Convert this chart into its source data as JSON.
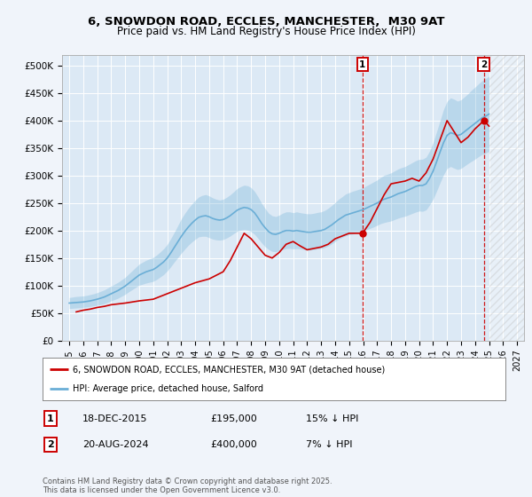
{
  "title_line1": "6, SNOWDON ROAD, ECCLES, MANCHESTER,  M30 9AT",
  "title_line2": "Price paid vs. HM Land Registry's House Price Index (HPI)",
  "background_color": "#dce9f5",
  "plot_bg_color": "#dce9f5",
  "outer_bg_color": "#f0f4fa",
  "grid_color": "#ffffff",
  "ylim": [
    0,
    520000
  ],
  "yticks": [
    0,
    50000,
    100000,
    150000,
    200000,
    250000,
    300000,
    350000,
    400000,
    450000,
    500000
  ],
  "ytick_labels": [
    "£0",
    "£50K",
    "£100K",
    "£150K",
    "£200K",
    "£250K",
    "£300K",
    "£350K",
    "£400K",
    "£450K",
    "£500K"
  ],
  "xmin_year": 1994.5,
  "xmax_year": 2027.5,
  "xticks": [
    1995,
    1996,
    1997,
    1998,
    1999,
    2000,
    2001,
    2002,
    2003,
    2004,
    2005,
    2006,
    2007,
    2008,
    2009,
    2010,
    2011,
    2012,
    2013,
    2014,
    2015,
    2016,
    2017,
    2018,
    2019,
    2020,
    2021,
    2022,
    2023,
    2024,
    2025,
    2026,
    2027
  ],
  "hpi_color": "#6aaed6",
  "price_color": "#cc0000",
  "marker1_year": 2015.96,
  "marker1_price": 195000,
  "marker2_year": 2024.63,
  "marker2_price": 400000,
  "marker1_label": "1",
  "marker2_label": "2",
  "legend_line1": "6, SNOWDON ROAD, ECCLES, MANCHESTER, M30 9AT (detached house)",
  "legend_line2": "HPI: Average price, detached house, Salford",
  "annotation1_date": "18-DEC-2015",
  "annotation1_price": "£195,000",
  "annotation1_hpi": "15% ↓ HPI",
  "annotation2_date": "20-AUG-2024",
  "annotation2_price": "£400,000",
  "annotation2_hpi": "7% ↓ HPI",
  "footer": "Contains HM Land Registry data © Crown copyright and database right 2025.\nThis data is licensed under the Open Government Licence v3.0.",
  "hpi_data_x": [
    1995.0,
    1995.25,
    1995.5,
    1995.75,
    1996.0,
    1996.25,
    1996.5,
    1996.75,
    1997.0,
    1997.25,
    1997.5,
    1997.75,
    1998.0,
    1998.25,
    1998.5,
    1998.75,
    1999.0,
    1999.25,
    1999.5,
    1999.75,
    2000.0,
    2000.25,
    2000.5,
    2000.75,
    2001.0,
    2001.25,
    2001.5,
    2001.75,
    2002.0,
    2002.25,
    2002.5,
    2002.75,
    2003.0,
    2003.25,
    2003.5,
    2003.75,
    2004.0,
    2004.25,
    2004.5,
    2004.75,
    2005.0,
    2005.25,
    2005.5,
    2005.75,
    2006.0,
    2006.25,
    2006.5,
    2006.75,
    2007.0,
    2007.25,
    2007.5,
    2007.75,
    2008.0,
    2008.25,
    2008.5,
    2008.75,
    2009.0,
    2009.25,
    2009.5,
    2009.75,
    2010.0,
    2010.25,
    2010.5,
    2010.75,
    2011.0,
    2011.25,
    2011.5,
    2011.75,
    2012.0,
    2012.25,
    2012.5,
    2012.75,
    2013.0,
    2013.25,
    2013.5,
    2013.75,
    2014.0,
    2014.25,
    2014.5,
    2014.75,
    2015.0,
    2015.25,
    2015.5,
    2015.75,
    2016.0,
    2016.25,
    2016.5,
    2016.75,
    2017.0,
    2017.25,
    2017.5,
    2017.75,
    2018.0,
    2018.25,
    2018.5,
    2018.75,
    2019.0,
    2019.25,
    2019.5,
    2019.75,
    2020.0,
    2020.25,
    2020.5,
    2020.75,
    2021.0,
    2021.25,
    2021.5,
    2021.75,
    2022.0,
    2022.25,
    2022.5,
    2022.75,
    2023.0,
    2023.25,
    2023.5,
    2023.75,
    2024.0,
    2024.25,
    2024.5,
    2024.75,
    2025.0
  ],
  "hpi_data_y": [
    68000,
    68500,
    69000,
    69500,
    70000,
    71000,
    72000,
    73500,
    75000,
    77000,
    79000,
    82000,
    85000,
    88000,
    91000,
    95000,
    99000,
    104000,
    109000,
    114000,
    119000,
    122000,
    125000,
    127000,
    129000,
    133000,
    138000,
    143000,
    150000,
    159000,
    169000,
    179000,
    189000,
    198000,
    206000,
    213000,
    219000,
    224000,
    226000,
    227000,
    225000,
    222000,
    220000,
    219000,
    220000,
    223000,
    227000,
    232000,
    237000,
    240000,
    242000,
    241000,
    238000,
    232000,
    223000,
    213000,
    205000,
    198000,
    194000,
    193000,
    195000,
    198000,
    200000,
    200000,
    199000,
    200000,
    199000,
    198000,
    197000,
    197000,
    198000,
    199000,
    200000,
    202000,
    206000,
    210000,
    215000,
    220000,
    224000,
    228000,
    230000,
    232000,
    234000,
    236000,
    238000,
    241000,
    244000,
    247000,
    250000,
    254000,
    257000,
    259000,
    261000,
    264000,
    267000,
    269000,
    271000,
    274000,
    277000,
    280000,
    282000,
    282000,
    285000,
    295000,
    308000,
    325000,
    343000,
    360000,
    373000,
    378000,
    376000,
    373000,
    375000,
    380000,
    385000,
    390000,
    395000,
    400000,
    405000,
    408000,
    412000
  ],
  "price_data_x": [
    1995.5,
    1996.0,
    1996.5,
    1997.0,
    1997.5,
    1998.0,
    1999.0,
    2000.0,
    2001.0,
    2002.0,
    2003.0,
    2004.0,
    2005.0,
    2006.0,
    2006.5,
    2007.0,
    2007.5,
    2008.0,
    2008.5,
    2009.0,
    2009.5,
    2010.0,
    2010.5,
    2011.0,
    2011.5,
    2012.0,
    2013.0,
    2013.5,
    2014.0,
    2014.5,
    2015.0,
    2015.96,
    2016.5,
    2017.0,
    2017.5,
    2018.0,
    2019.0,
    2019.5,
    2020.0,
    2020.5,
    2021.0,
    2021.5,
    2022.0,
    2022.5,
    2023.0,
    2023.5,
    2024.0,
    2024.63,
    2025.0
  ],
  "price_data_y": [
    52000,
    55000,
    57000,
    60000,
    62000,
    65000,
    68000,
    72000,
    75000,
    85000,
    95000,
    105000,
    112000,
    125000,
    145000,
    170000,
    195000,
    185000,
    170000,
    155000,
    150000,
    160000,
    175000,
    180000,
    172000,
    165000,
    170000,
    175000,
    185000,
    190000,
    195000,
    195000,
    215000,
    240000,
    265000,
    285000,
    290000,
    295000,
    290000,
    305000,
    330000,
    365000,
    400000,
    380000,
    360000,
    370000,
    385000,
    400000,
    390000
  ],
  "hpi_shade_upper_y": [
    78000,
    79000,
    80000,
    80500,
    81000,
    82000,
    83500,
    85000,
    87000,
    89500,
    92000,
    95500,
    99000,
    102500,
    106000,
    110500,
    115000,
    121000,
    127000,
    133000,
    139000,
    142500,
    146000,
    148500,
    151000,
    155500,
    161000,
    167000,
    174500,
    185000,
    196500,
    208500,
    221000,
    231000,
    240000,
    248000,
    255000,
    261000,
    264000,
    265500,
    263000,
    259500,
    257000,
    255500,
    257000,
    260500,
    265000,
    270500,
    276500,
    280000,
    282500,
    281500,
    278000,
    271000,
    261000,
    249500,
    240000,
    231500,
    227000,
    225500,
    228000,
    231500,
    234000,
    234000,
    232500,
    234000,
    232500,
    231500,
    230500,
    230500,
    231500,
    233000,
    234000,
    236500,
    240500,
    245500,
    251000,
    257000,
    261500,
    266500,
    269000,
    271500,
    273500,
    275500,
    278000,
    281500,
    285000,
    288500,
    292000,
    296500,
    300500,
    302500,
    305000,
    308500,
    312000,
    314500,
    316500,
    320000,
    323500,
    327000,
    329500,
    330000,
    333500,
    344500,
    360000,
    379500,
    400000,
    420500,
    435000,
    441500,
    439000,
    435500,
    438000,
    443500,
    449000,
    455500,
    461000,
    467000,
    472500,
    476500,
    481000
  ],
  "hpi_shade_lower_y": [
    58000,
    58500,
    59000,
    59500,
    60000,
    61000,
    62000,
    63000,
    64000,
    65500,
    67000,
    69500,
    72000,
    74500,
    77000,
    80500,
    84000,
    88500,
    92500,
    96500,
    100500,
    102500,
    104500,
    106000,
    107500,
    111000,
    115500,
    120000,
    126500,
    134000,
    142500,
    150500,
    158500,
    166000,
    173000,
    179000,
    184000,
    188500,
    189500,
    189500,
    187000,
    184500,
    183000,
    182500,
    183500,
    186500,
    190000,
    194500,
    198500,
    200500,
    201500,
    200500,
    198000,
    193000,
    185500,
    177500,
    170500,
    165500,
    162000,
    161500,
    163500,
    165500,
    167000,
    167500,
    166500,
    167000,
    166500,
    165500,
    164500,
    164500,
    165500,
    166500,
    167500,
    169000,
    172000,
    175500,
    180000,
    184500,
    187500,
    190500,
    192500,
    193500,
    195500,
    197500,
    199000,
    201500,
    204000,
    206500,
    209500,
    212500,
    214500,
    216000,
    217500,
    220000,
    222500,
    224500,
    226000,
    228500,
    231000,
    233500,
    235500,
    235000,
    237500,
    246500,
    257000,
    271500,
    287000,
    301500,
    313000,
    316500,
    313500,
    311000,
    313000,
    317500,
    322000,
    326000,
    330000,
    334500,
    338500,
    341000,
    344000
  ]
}
